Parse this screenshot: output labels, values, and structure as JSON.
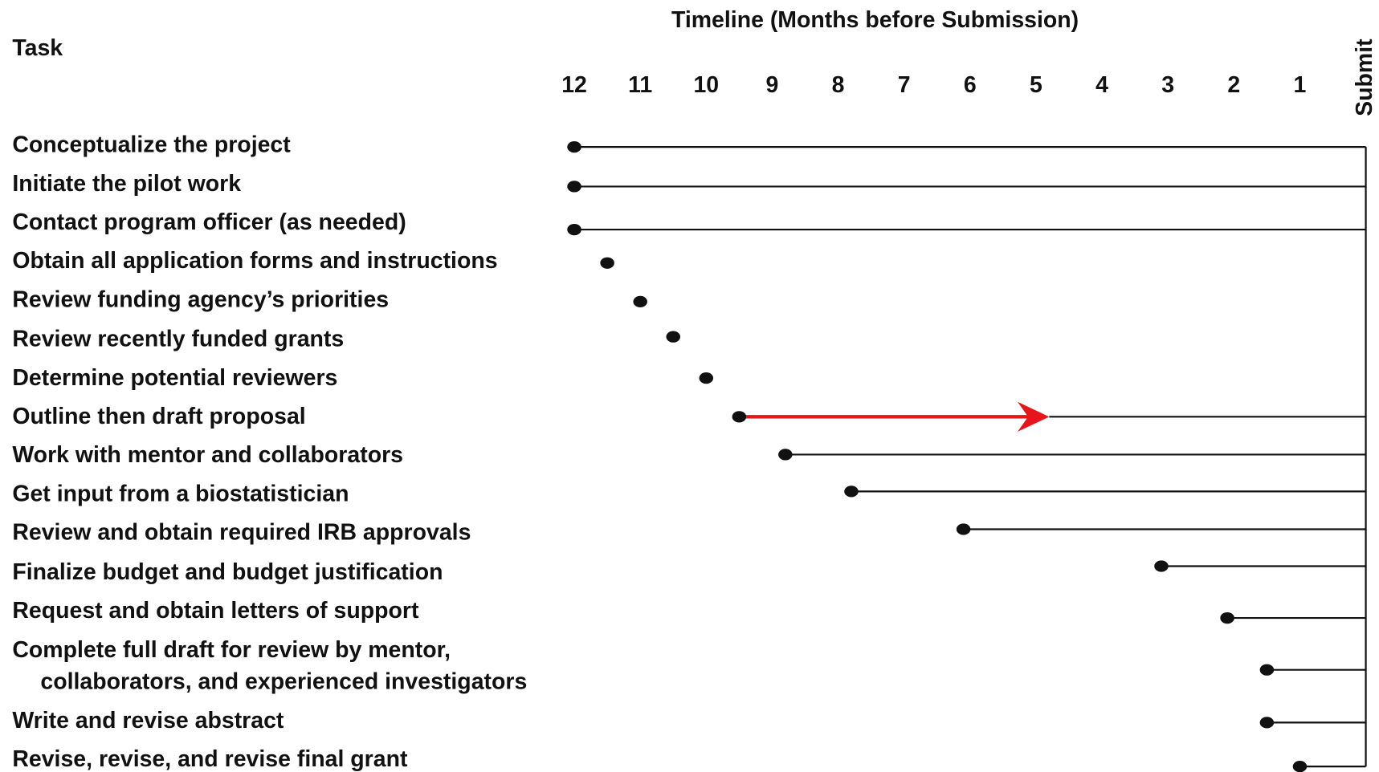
{
  "chart_data": {
    "type": "timeline",
    "title": "Timeline (Months before Submission)",
    "category_header": "Task",
    "categories": [
      "Conceptualize the project",
      "Initiate the pilot work",
      "Contact program officer (as needed)",
      "Obtain all application forms and instructions",
      "Review funding agency’s priorities",
      "Review recently funded grants",
      "Determine potential reviewers",
      "Outline then draft proposal",
      "Work with mentor and collaborators",
      "Get input from a biostatistician",
      "Review and obtain required IRB approvals",
      "Finalize budget and budget justification",
      "Request and obtain letters of support",
      [
        "Complete full draft for review by mentor,",
        "collaborators, and experienced investigators"
      ],
      "Write and revise abstract",
      "Revise, revise, and revise final grant"
    ],
    "values": [
      12,
      12,
      12,
      11.5,
      11,
      10.5,
      10,
      9.5,
      8.8,
      7.8,
      6.1,
      3.1,
      2.1,
      1.5,
      1.5,
      1
    ],
    "ends": [
      0,
      0,
      0,
      null,
      null,
      null,
      null,
      0,
      0,
      0,
      0,
      0,
      0,
      0,
      0,
      0
    ],
    "arrow_ends": [
      null,
      null,
      null,
      null,
      null,
      null,
      null,
      4.8,
      null,
      null,
      null,
      null,
      null,
      null,
      null,
      null
    ],
    "color": "#111111",
    "arrow_color": "#e8141b",
    "xlim": [
      12,
      0
    ],
    "xticks": [
      12,
      11,
      10,
      9,
      8,
      7,
      6,
      5,
      4,
      3,
      2,
      1,
      {
        "value": 0,
        "label": "Submit"
      }
    ]
  }
}
